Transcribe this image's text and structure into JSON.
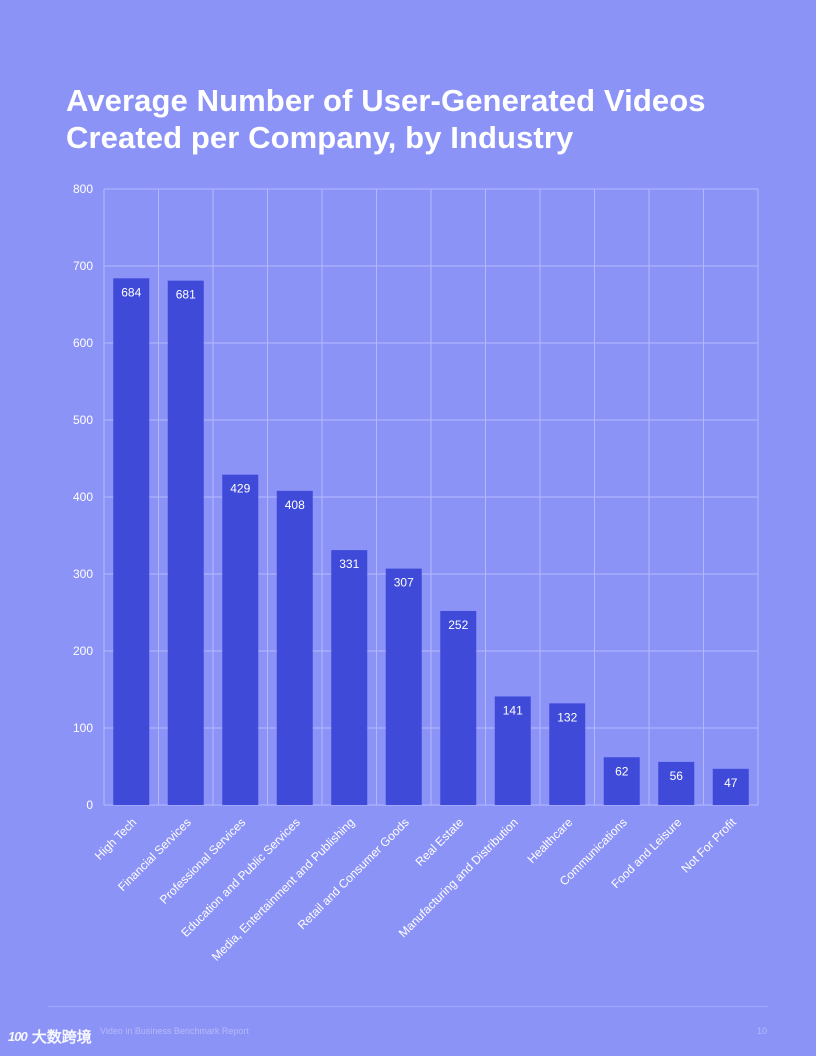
{
  "chart_data": {
    "type": "bar",
    "title": "Average Number of User-Generated Videos Created per Company, by Industry",
    "title_lines": [
      "Average Number of User-Generated Videos",
      "Created per Company, by Industry"
    ],
    "categories": [
      "High Tech",
      "Financial Services",
      "Professional Services",
      "Education and Public Services",
      "Media, Entertainment and Publishing",
      "Retail and Consumer Goods",
      "Real Estate",
      "Manufacturing and Distribution",
      "Healthcare",
      "Communications",
      "Food and Leisure",
      "Not For Profit"
    ],
    "values": [
      684,
      681,
      429,
      408,
      331,
      307,
      252,
      141,
      132,
      62,
      56,
      47
    ],
    "ylim": [
      0,
      800
    ],
    "yticks": [
      0,
      100,
      200,
      300,
      400,
      500,
      600,
      700,
      800
    ],
    "xlabel": "",
    "ylabel": "",
    "grid": true,
    "data_labels": true
  },
  "footer": {
    "report": "Video in Business Benchmark Report",
    "page": "10"
  },
  "watermark": {
    "logo": "100",
    "text": "大数跨境"
  },
  "colors": {
    "background": "#8c93f7",
    "bar": "#3f4ad9",
    "grid": "#b3b8fb",
    "text": "#ffffff"
  }
}
